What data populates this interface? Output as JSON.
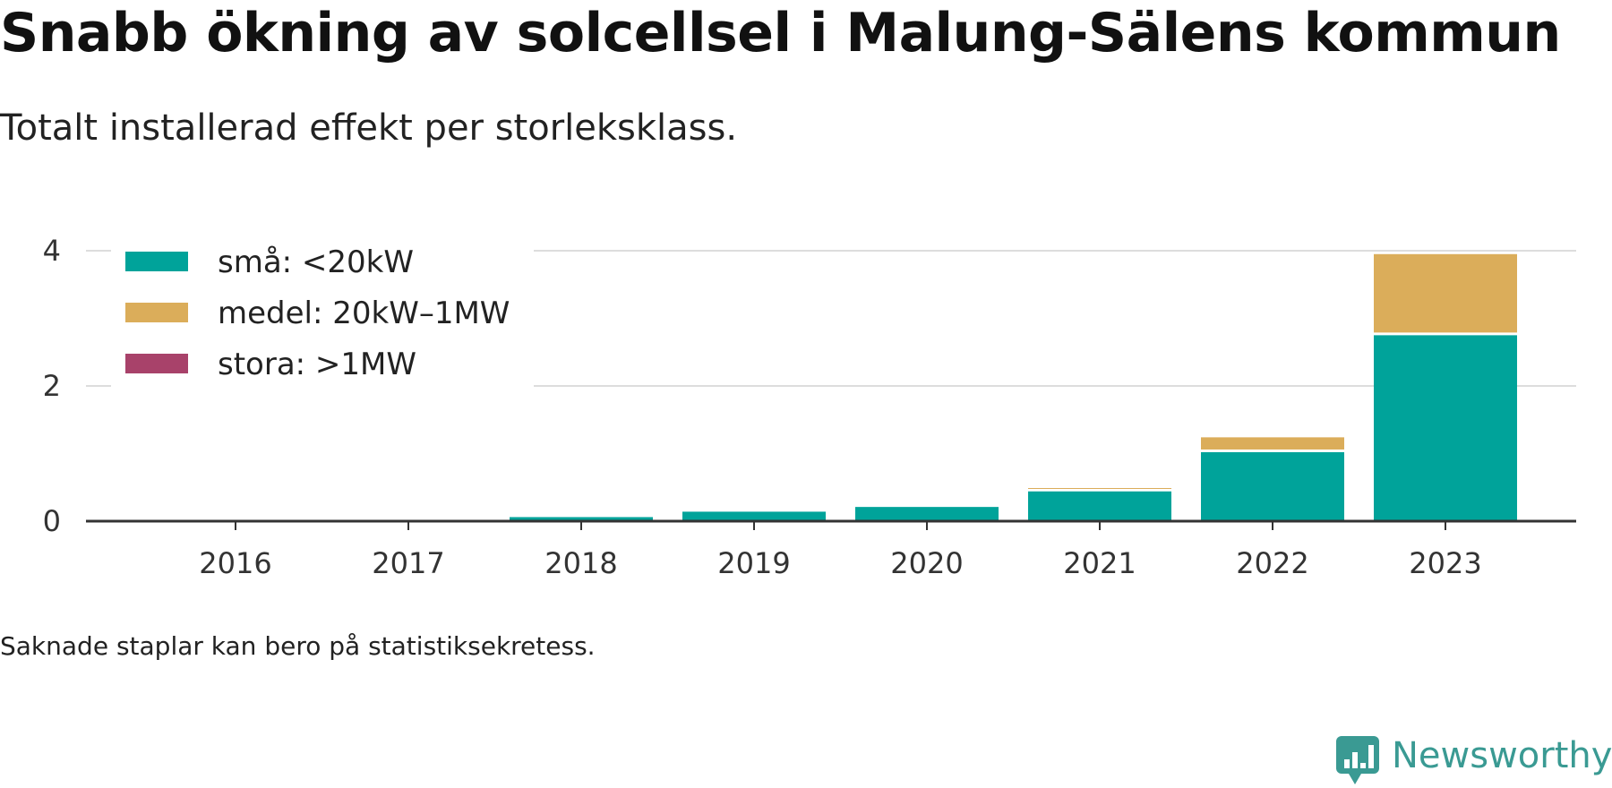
{
  "title": "Snabb ökning av solcellsel i Malung-Sälens kommun",
  "subtitle": "Totalt installerad effekt per storleksklass.",
  "footnote": "Saknade staplar kan bero på statistiksekretess.",
  "brand": {
    "name": "Newsworthy",
    "color": "#3a9a93",
    "icon": "newsworthy-logo-icon"
  },
  "chart_data": {
    "type": "bar",
    "stacked": true,
    "categories": [
      "2016",
      "2017",
      "2018",
      "2019",
      "2020",
      "2021",
      "2022",
      "2023"
    ],
    "series": [
      {
        "name": "små: <20kW",
        "color": "#00a39a",
        "values": [
          0,
          0,
          0.06,
          0.14,
          0.21,
          0.44,
          1.02,
          2.75
        ]
      },
      {
        "name": "medel: 20kW–1MW",
        "color": "#dbad5a",
        "values": [
          0,
          0,
          0,
          0,
          0,
          0.05,
          0.22,
          1.2
        ]
      },
      {
        "name": "stora: >1MW",
        "color": "#a8426a",
        "values": [
          0,
          0,
          0,
          0,
          0,
          0,
          0,
          0
        ]
      }
    ],
    "y_ticks": [
      0,
      2,
      4
    ],
    "ylim": [
      0,
      4
    ],
    "grid": true,
    "legend_position": "top-left"
  }
}
